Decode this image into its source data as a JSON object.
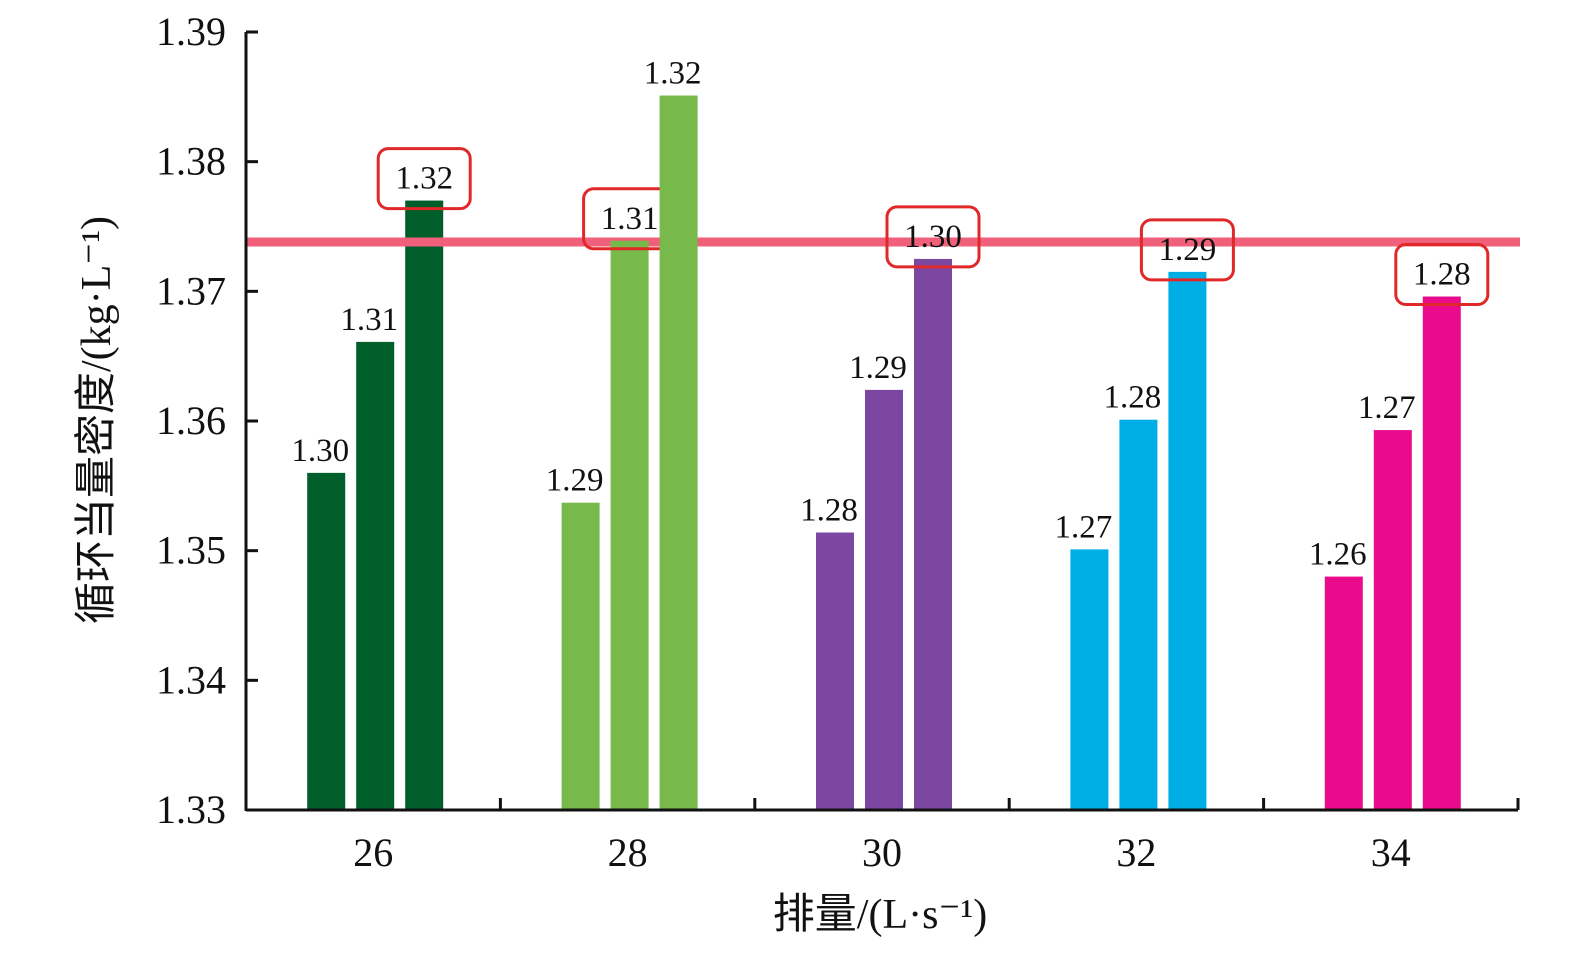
{
  "chart_data": {
    "type": "bar",
    "title": "",
    "xlabel": "排量/(L·s⁻¹)",
    "ylabel": "循环当量密度/(kg·L⁻¹)",
    "ylim": [
      1.33,
      1.39
    ],
    "yticks": [
      "1.33",
      "1.34",
      "1.35",
      "1.36",
      "1.37",
      "1.38",
      "1.39"
    ],
    "categories": [
      "26",
      "28",
      "30",
      "32",
      "34"
    ],
    "grid": false,
    "groups": [
      {
        "category": "26",
        "color": "#005e2b",
        "values": [
          1.356,
          1.3661,
          1.377
        ],
        "labels": [
          "1.30",
          "1.31",
          "1.32"
        ],
        "highlighted_label": 2
      },
      {
        "category": "28",
        "color": "#77b94a",
        "values": [
          1.3537,
          1.3739,
          1.3851
        ],
        "labels": [
          "1.29",
          "1.31",
          "1.32"
        ],
        "highlighted_label": 1
      },
      {
        "category": "30",
        "color": "#7b47a0",
        "values": [
          1.3514,
          1.3624,
          1.3725
        ],
        "labels": [
          "1.28",
          "1.29",
          "1.30"
        ],
        "highlighted_label": 2
      },
      {
        "category": "32",
        "color": "#00aee6",
        "values": [
          1.3501,
          1.3601,
          1.3715
        ],
        "labels": [
          "1.27",
          "1.28",
          "1.29"
        ],
        "highlighted_label": 2
      },
      {
        "category": "34",
        "color": "#ea0b8c",
        "values": [
          1.348,
          1.3593,
          1.3696
        ],
        "labels": [
          "1.26",
          "1.27",
          "1.28"
        ],
        "highlighted_label": 2
      }
    ],
    "reference_line": {
      "value": 1.3738,
      "color": "#f0607a"
    },
    "highlight_box_color": "#e02828"
  }
}
